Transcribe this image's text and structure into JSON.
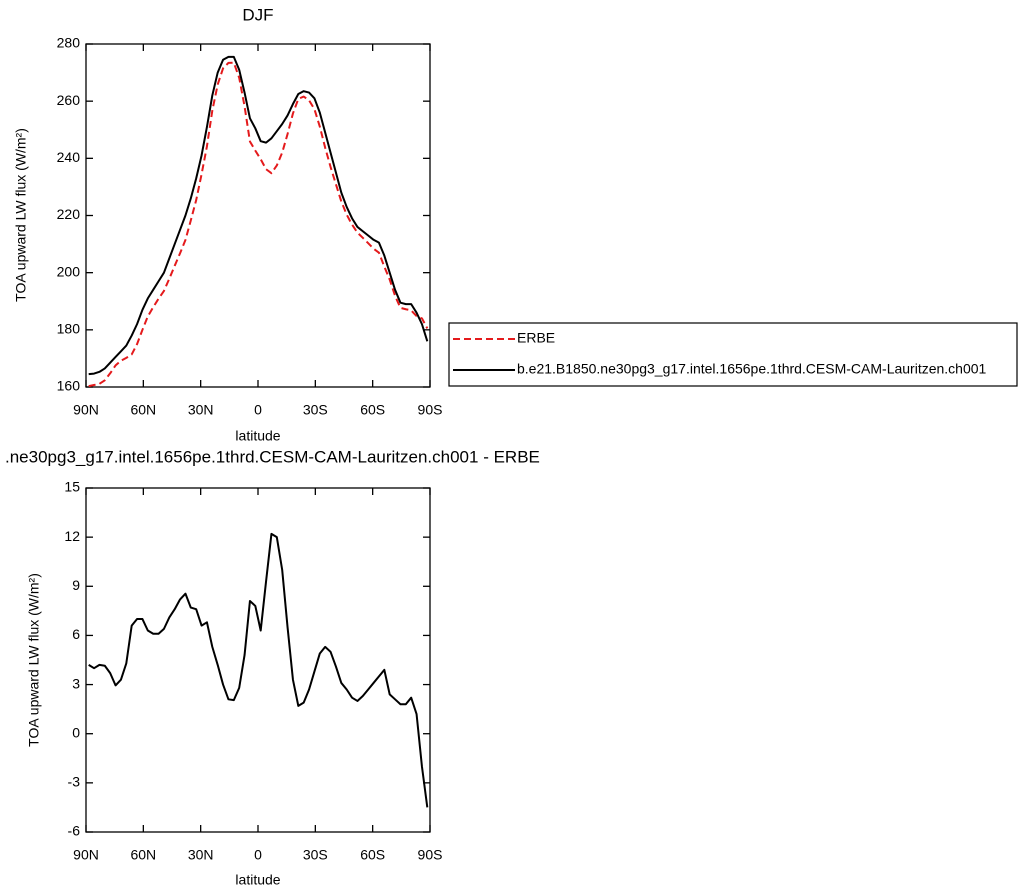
{
  "chart_data": [
    {
      "type": "line",
      "title": "DJF",
      "x_label": "latitude",
      "y_label": "TOA upward LW flux (W/m²)",
      "x": [
        88.59,
        85.78,
        82.97,
        80.16,
        77.34,
        74.53,
        71.72,
        68.91,
        66.09,
        63.28,
        60.47,
        57.66,
        54.84,
        52.03,
        49.22,
        46.41,
        43.59,
        40.78,
        37.97,
        35.16,
        32.34,
        29.53,
        26.72,
        23.91,
        21.09,
        18.28,
        15.47,
        12.66,
        9.84,
        7.03,
        4.22,
        1.41,
        -1.41,
        -4.22,
        -7.03,
        -9.84,
        -12.66,
        -15.47,
        -18.28,
        -21.09,
        -23.91,
        -26.72,
        -29.53,
        -32.34,
        -35.16,
        -37.97,
        -40.78,
        -43.59,
        -46.41,
        -49.22,
        -52.03,
        -54.84,
        -57.66,
        -60.47,
        -63.28,
        -66.09,
        -68.91,
        -71.72,
        -74.53,
        -77.34,
        -80.16,
        -82.97,
        -85.78,
        -88.59
      ],
      "xlim": [
        90,
        -90
      ],
      "xticks": [
        {
          "value": 90,
          "label": "90N"
        },
        {
          "value": 60,
          "label": "60N"
        },
        {
          "value": 30,
          "label": "30N"
        },
        0,
        {
          "value": -30,
          "label": "30S"
        },
        {
          "value": -60,
          "label": "60S"
        },
        {
          "value": -90,
          "label": "90S"
        }
      ],
      "ylim": [
        160,
        280
      ],
      "yticks": [
        160,
        180,
        200,
        220,
        240,
        260,
        280
      ],
      "legend": "right",
      "series": [
        {
          "name": "ERBE",
          "color": "#e41a1c",
          "line_style": "dashed",
          "values": [
            160.3,
            160.7,
            161.1,
            162.35,
            164.8,
            167.55,
            169.2,
            170.2,
            171.4,
            175,
            180,
            184.7,
            187.9,
            190.9,
            193.6,
            197.9,
            202.4,
            206.8,
            211.45,
            218.3,
            225.4,
            234.4,
            244.2,
            256.7,
            265.8,
            271.5,
            273.4,
            273.45,
            268.2,
            258.2,
            245.9,
            242.7,
            239.7,
            236.2,
            234.8,
            237.5,
            242,
            248.5,
            255.7,
            260.8,
            261.6,
            260.3,
            257.2,
            251.1,
            243.7,
            237,
            230.9,
            224.9,
            220.3,
            216.8,
            214,
            212.2,
            210.3,
            208.4,
            207,
            202.1,
            197.6,
            191.9,
            187.7,
            187.2,
            186.8,
            184.8,
            184,
            180.5
          ]
        },
        {
          "name": "b.e21.B1850.ne30pg3_g17.intel.1656pe.1thrd.CESM-CAM-Lauritzen.ch001",
          "color": "#000000",
          "line_style": "solid",
          "values": [
            164.5,
            164.7,
            165.3,
            166.5,
            168.5,
            170.5,
            172.5,
            174.5,
            178,
            182,
            187,
            191,
            194,
            197,
            200,
            205,
            210,
            215,
            220,
            226,
            233,
            241,
            251,
            262,
            270,
            274.5,
            275.5,
            275.5,
            271,
            263,
            254,
            250.5,
            246,
            245.5,
            247,
            249.5,
            252,
            255,
            259,
            262.5,
            263.5,
            263,
            261,
            256,
            249,
            242,
            235,
            228,
            223,
            219,
            216,
            214.5,
            213,
            211.5,
            210.5,
            206,
            200,
            194,
            189.5,
            189,
            189,
            186,
            182,
            176
          ]
        }
      ]
    },
    {
      "type": "line",
      "title": ".ne30pg3_g17.intel.1656pe.1thrd.CESM-CAM-Lauritzen.ch001 - ERBE",
      "x_label": "latitude",
      "y_label": "TOA upward LW flux (W/m²)",
      "x": [
        88.59,
        85.78,
        82.97,
        80.16,
        77.34,
        74.53,
        71.72,
        68.91,
        66.09,
        63.28,
        60.47,
        57.66,
        54.84,
        52.03,
        49.22,
        46.41,
        43.59,
        40.78,
        37.97,
        35.16,
        32.34,
        29.53,
        26.72,
        23.91,
        21.09,
        18.28,
        15.47,
        12.66,
        9.84,
        7.03,
        4.22,
        1.41,
        -1.41,
        -4.22,
        -7.03,
        -9.84,
        -12.66,
        -15.47,
        -18.28,
        -21.09,
        -23.91,
        -26.72,
        -29.53,
        -32.34,
        -35.16,
        -37.97,
        -40.78,
        -43.59,
        -46.41,
        -49.22,
        -52.03,
        -54.84,
        -57.66,
        -60.47,
        -63.28,
        -66.09,
        -68.91,
        -71.72,
        -74.53,
        -77.34,
        -80.16,
        -82.97,
        -85.78,
        -88.59
      ],
      "xlim": [
        90,
        -90
      ],
      "xticks": [
        {
          "value": 90,
          "label": "90N"
        },
        {
          "value": 60,
          "label": "60N"
        },
        {
          "value": 30,
          "label": "30N"
        },
        0,
        {
          "value": -30,
          "label": "30S"
        },
        {
          "value": -60,
          "label": "60S"
        },
        {
          "value": -90,
          "label": "90S"
        }
      ],
      "ylim": [
        -6,
        15
      ],
      "yticks": [
        -6,
        -3,
        0,
        3,
        6,
        9,
        12,
        15
      ],
      "series": [
        {
          "color": "#000000",
          "line_style": "solid",
          "values": [
            4.2,
            4.0,
            4.2,
            4.15,
            3.7,
            2.95,
            3.3,
            4.3,
            6.6,
            7.0,
            7.0,
            6.3,
            6.1,
            6.1,
            6.4,
            7.1,
            7.6,
            8.2,
            8.55,
            7.7,
            7.6,
            6.6,
            6.8,
            5.3,
            4.2,
            3.0,
            2.1,
            2.05,
            2.8,
            4.8,
            8.1,
            7.8,
            6.3,
            9.3,
            12.2,
            12.0,
            10.0,
            6.5,
            3.3,
            1.7,
            1.9,
            2.7,
            3.8,
            4.9,
            5.3,
            5.0,
            4.1,
            3.1,
            2.7,
            2.2,
            2.0,
            2.3,
            2.7,
            3.1,
            3.5,
            3.9,
            2.4,
            2.1,
            1.8,
            1.8,
            2.2,
            1.2,
            -2.0,
            -4.5
          ]
        }
      ]
    }
  ]
}
